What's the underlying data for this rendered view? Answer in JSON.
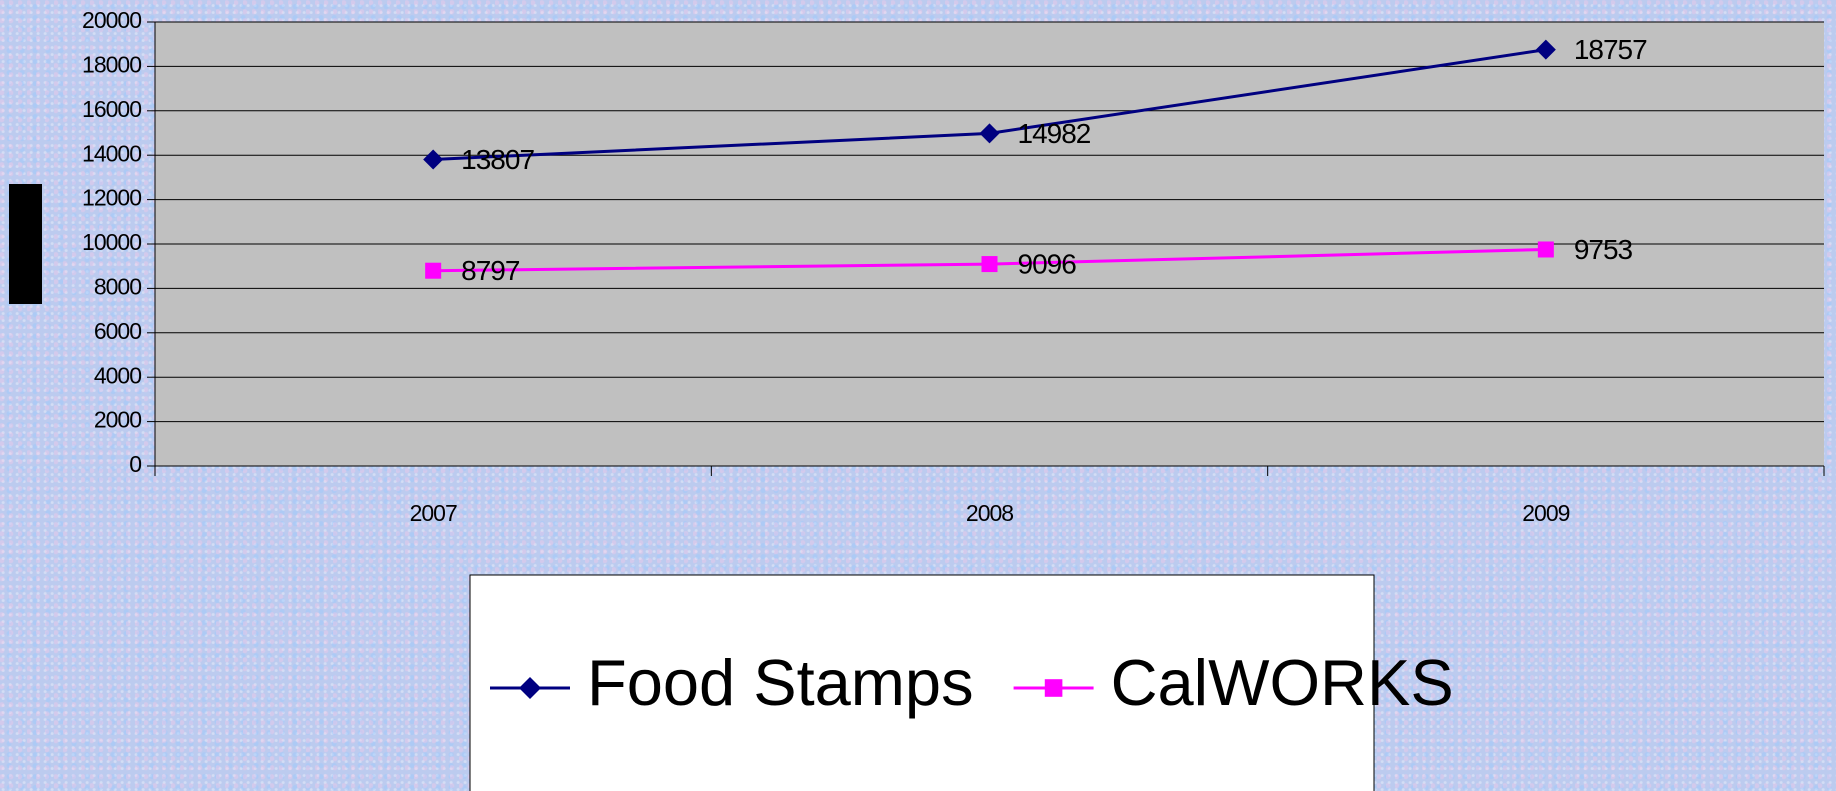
{
  "chart_data": {
    "type": "line",
    "categories": [
      "2007",
      "2008",
      "2009"
    ],
    "series": [
      {
        "name": "Food Stamps",
        "color": "#000080",
        "marker": "diamond",
        "values": [
          13807,
          14982,
          18757
        ]
      },
      {
        "name": "CalWORKS",
        "color": "#ff00ff",
        "marker": "square",
        "values": [
          8797,
          9096,
          9753
        ]
      }
    ],
    "ylim": [
      0,
      20000
    ],
    "yticks": [
      0,
      2000,
      4000,
      6000,
      8000,
      10000,
      12000,
      14000,
      16000,
      18000,
      20000
    ],
    "grid": true,
    "legend": "bottom"
  }
}
